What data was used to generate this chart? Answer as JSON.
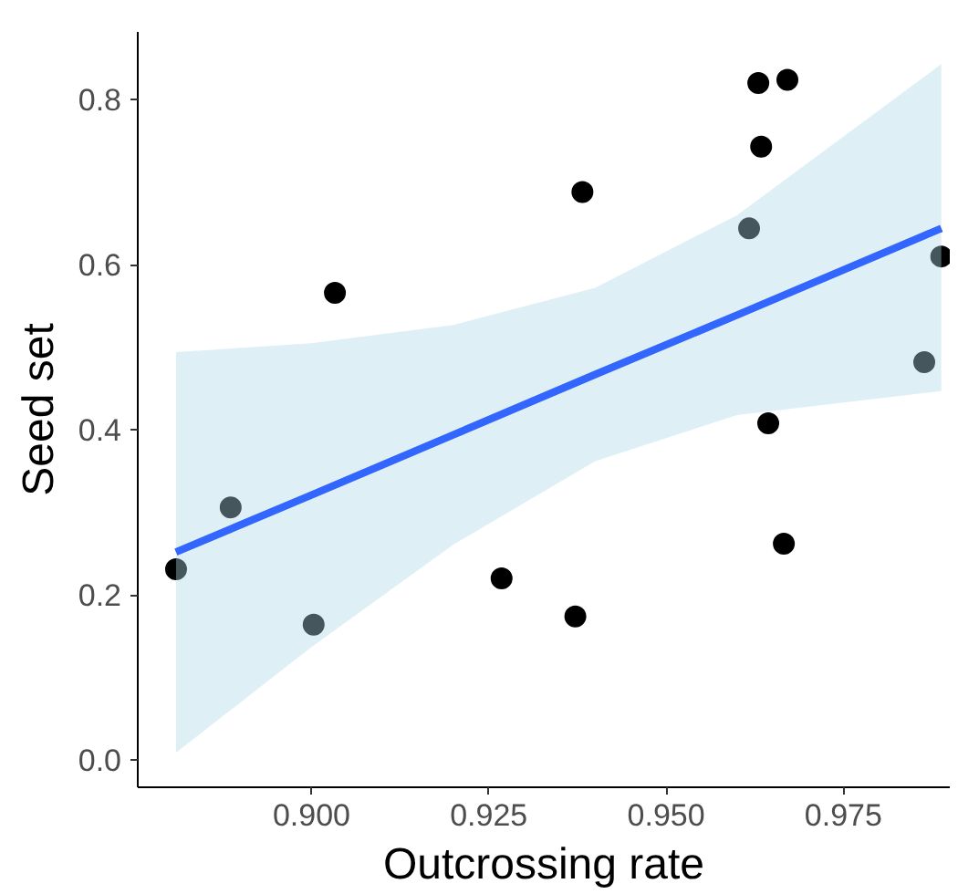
{
  "chart_data": {
    "type": "scatter",
    "xlabel": "Outcrossing rate",
    "ylabel": "Seed set",
    "xlim": [
      0.8755,
      0.99
    ],
    "ylim": [
      -0.033,
      0.882
    ],
    "xticks": [
      {
        "value": 0.9,
        "label": "0.900"
      },
      {
        "value": 0.925,
        "label": "0.925"
      },
      {
        "value": 0.95,
        "label": "0.950"
      },
      {
        "value": 0.975,
        "label": "0.975"
      }
    ],
    "yticks": [
      {
        "value": 0,
        "label": "0.0"
      },
      {
        "value": 0.2,
        "label": "0.2"
      },
      {
        "value": 0.4,
        "label": "0.4"
      },
      {
        "value": 0.6,
        "label": "0.6"
      },
      {
        "value": 0.8,
        "label": "0.8"
      }
    ],
    "grid": false,
    "series": [
      {
        "marker": "circle",
        "color": "#000000",
        "x": [
          0.8809,
          0.8886,
          0.9003,
          0.9033,
          0.9268,
          0.9372,
          0.9382,
          0.9617,
          0.963,
          0.9671,
          0.9634,
          0.9644,
          0.9666,
          0.9864,
          0.9888
        ],
        "values": [
          0.231,
          0.306,
          0.164,
          0.566,
          0.22,
          0.174,
          0.688,
          0.644,
          0.82,
          0.824,
          0.743,
          0.408,
          0.262,
          0.482,
          0.61
        ]
      },
      {
        "type": "line",
        "marker": "none",
        "color": "#3366ff",
        "x": [
          0.8809,
          0.9,
          0.92,
          0.94,
          0.96,
          0.9888
        ],
        "values": [
          0.252,
          0.321,
          0.394,
          0.467,
          0.539,
          0.644
        ],
        "lower": [
          0.009,
          0.137,
          0.261,
          0.362,
          0.418,
          0.447
        ],
        "upper": [
          0.494,
          0.505,
          0.527,
          0.572,
          0.66,
          0.843
        ]
      }
    ]
  }
}
